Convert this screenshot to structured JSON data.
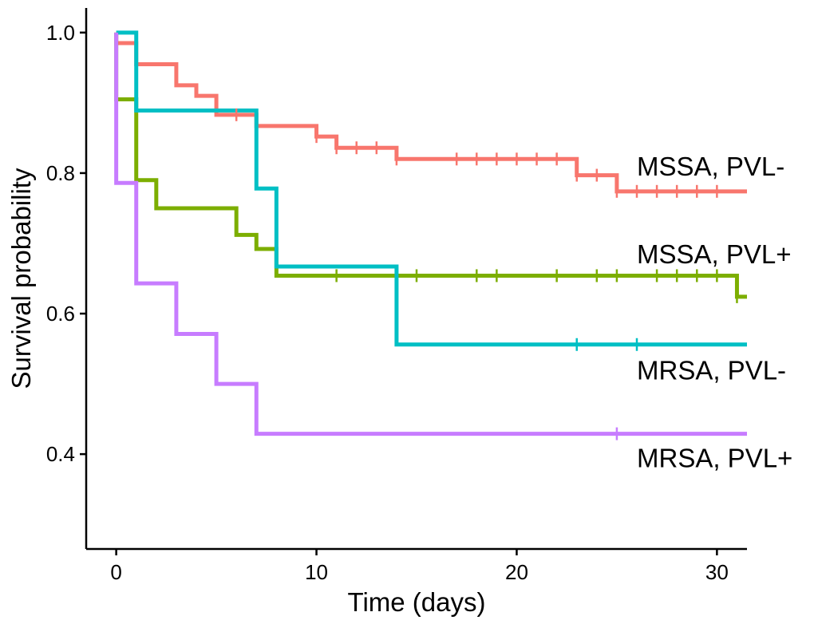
{
  "chart_data": {
    "type": "line",
    "subtype": "kaplan-meier step",
    "title": "",
    "xlabel": "Time (days)",
    "ylabel": "Survival probability",
    "xlim": [
      -1.5,
      31.5
    ],
    "ylim": [
      0.265,
      1.035
    ],
    "x_ticks": [
      0,
      10,
      20,
      30
    ],
    "x_tick_labels": [
      "0",
      "10",
      "20",
      "30"
    ],
    "y_ticks": [
      0.4,
      0.6,
      0.8,
      1.0
    ],
    "y_tick_labels": [
      "0.4",
      "0.6",
      "0.8",
      "1.0"
    ],
    "grid": false,
    "legend": "none (series labeled directly at right end)",
    "series": [
      {
        "name": "MSSA, PVL-",
        "color": "#F8766D",
        "label_pos": [
          26,
          0.81
        ],
        "steps": [
          [
            0,
            1.0
          ],
          [
            0,
            0.985
          ],
          [
            1,
            0.955
          ],
          [
            3,
            0.925
          ],
          [
            4,
            0.91
          ],
          [
            5,
            0.883
          ],
          [
            7,
            0.867
          ],
          [
            10,
            0.852
          ],
          [
            11,
            0.836
          ],
          [
            14,
            0.82
          ],
          [
            23,
            0.797
          ],
          [
            25,
            0.774
          ],
          [
            31.5,
            0.774
          ]
        ],
        "censored": [
          [
            6,
            0.883
          ],
          [
            10,
            0.852
          ],
          [
            11,
            0.836
          ],
          [
            12,
            0.836
          ],
          [
            13,
            0.836
          ],
          [
            14,
            0.82
          ],
          [
            17,
            0.82
          ],
          [
            18,
            0.82
          ],
          [
            19,
            0.82
          ],
          [
            20,
            0.82
          ],
          [
            21,
            0.82
          ],
          [
            22,
            0.82
          ],
          [
            23,
            0.797
          ],
          [
            24,
            0.797
          ],
          [
            25,
            0.774
          ],
          [
            26,
            0.774
          ],
          [
            27,
            0.774
          ],
          [
            28,
            0.774
          ],
          [
            29,
            0.774
          ],
          [
            30,
            0.774
          ]
        ]
      },
      {
        "name": "MSSA, PVL+",
        "color": "#7CAE00",
        "label_pos": [
          26,
          0.685
        ],
        "steps": [
          [
            0,
            1.0
          ],
          [
            0,
            0.905
          ],
          [
            1,
            0.79
          ],
          [
            2,
            0.75
          ],
          [
            6,
            0.712
          ],
          [
            7,
            0.692
          ],
          [
            8,
            0.654
          ],
          [
            31,
            0.624
          ],
          [
            31.5,
            0.624
          ]
        ],
        "censored": [
          [
            11,
            0.654
          ],
          [
            15,
            0.654
          ],
          [
            18,
            0.654
          ],
          [
            19,
            0.654
          ],
          [
            22,
            0.654
          ],
          [
            24,
            0.654
          ],
          [
            25,
            0.654
          ],
          [
            27,
            0.654
          ],
          [
            28,
            0.654
          ],
          [
            29,
            0.654
          ],
          [
            30,
            0.654
          ],
          [
            31,
            0.624
          ]
        ]
      },
      {
        "name": "MRSA, PVL-",
        "color": "#00BFC4",
        "label_pos": [
          26,
          0.52
        ],
        "steps": [
          [
            0,
            1.0
          ],
          [
            1,
            0.889
          ],
          [
            7,
            0.778
          ],
          [
            8,
            0.667
          ],
          [
            14,
            0.556
          ],
          [
            31.5,
            0.556
          ]
        ],
        "censored": [
          [
            23,
            0.556
          ],
          [
            26,
            0.556
          ]
        ]
      },
      {
        "name": "MRSA, PVL+",
        "color": "#C77CFF",
        "label_pos": [
          26,
          0.395
        ],
        "steps": [
          [
            0,
            1.0
          ],
          [
            0,
            0.786
          ],
          [
            1,
            0.643
          ],
          [
            3,
            0.571
          ],
          [
            5,
            0.5
          ],
          [
            7,
            0.429
          ],
          [
            31.5,
            0.429
          ]
        ],
        "censored": [
          [
            25,
            0.429
          ]
        ]
      }
    ]
  }
}
